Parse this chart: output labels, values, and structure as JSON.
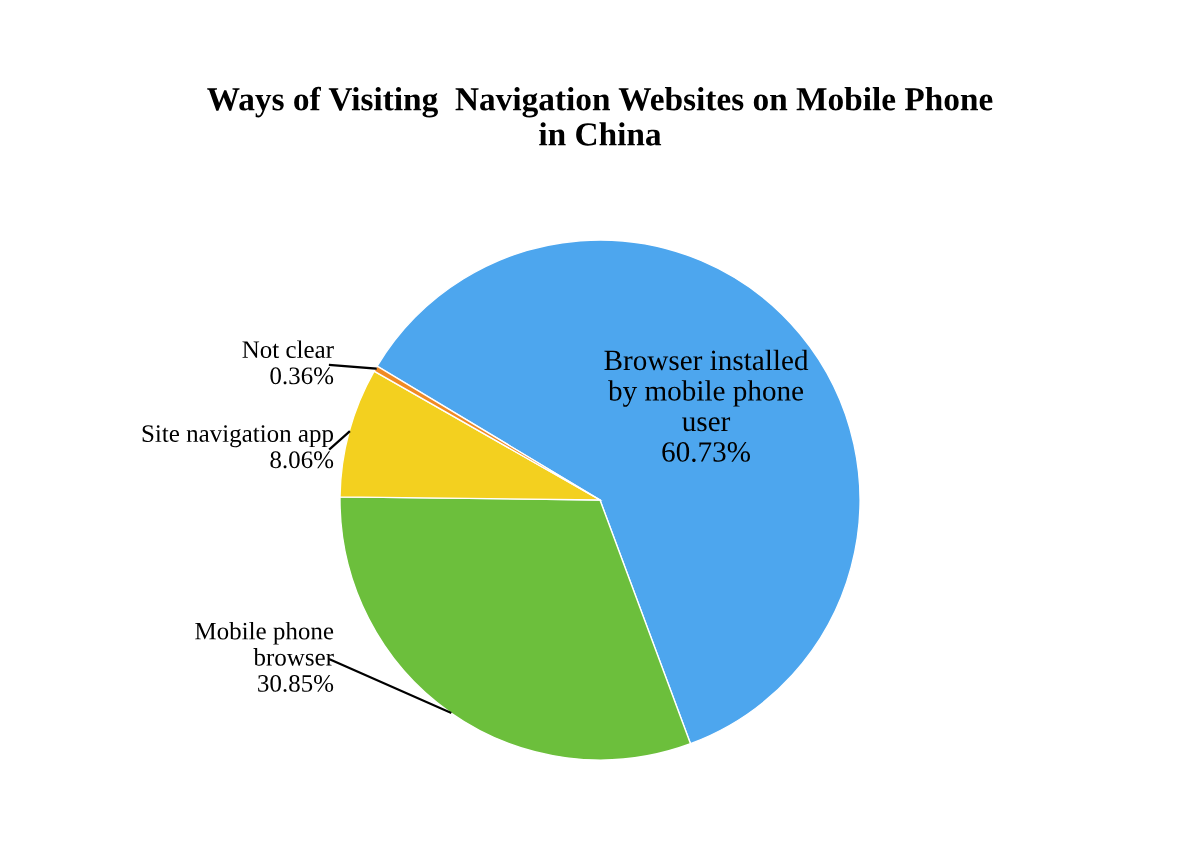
{
  "chart_data": {
    "type": "pie",
    "title": "Ways of Visiting  Navigation Websites on Mobile Phone\nin China",
    "categories": [
      "Browser installed\nby mobile phone\nuser",
      "Mobile phone\nbrowser",
      "Site navigation app",
      "Not clear"
    ],
    "values": [
      60.73,
      30.85,
      8.06,
      0.36
    ],
    "colors": [
      "#4da6ee",
      "#6cbf3c",
      "#f3d01f",
      "#f08a24"
    ],
    "value_labels": [
      "60.73%",
      "30.85%",
      "8.06%",
      "0.36%"
    ]
  }
}
